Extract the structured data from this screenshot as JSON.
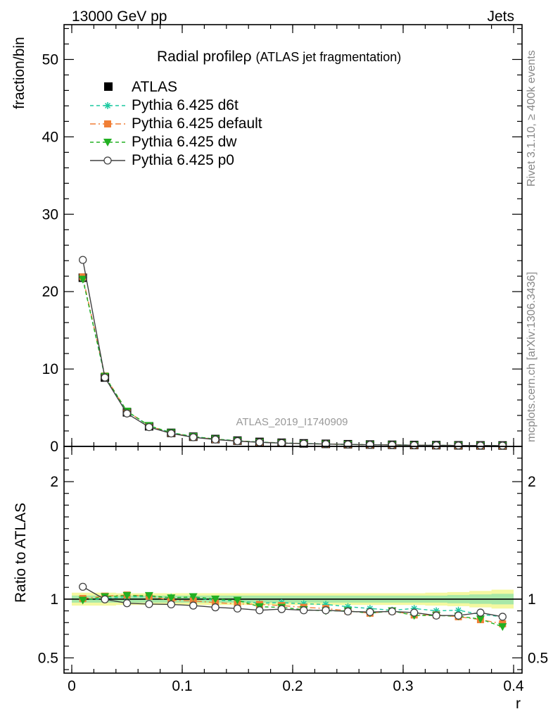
{
  "header": {
    "left": "13000 GeV pp",
    "right": "Jets"
  },
  "side_notes": {
    "rivet": "Rivet 3.1.10, ≥ 400k events",
    "mcplots": "mcplots.cern.ch [arXiv:1306.3436]"
  },
  "chart_data": {
    "type": "line",
    "title_main": "Radial profileρ",
    "title_sub": "(ATLAS jet fragmentation)",
    "analysis_label": "ATLAS_2019_I1740909",
    "xlabel": "r",
    "ylabel_main": "fraction/bin",
    "ylabel_ratio": "Ratio to ATLAS",
    "xlim": [
      0,
      0.4
    ],
    "ylim_main": [
      0,
      54.5
    ],
    "ylim_ratio": [
      0.37,
      2.3
    ],
    "x_ticks": [
      0,
      0.1,
      0.2,
      0.3,
      0.4
    ],
    "x_tick_labels": [
      "0",
      "0.1",
      "0.2",
      "0.3",
      "0.4"
    ],
    "y_ticks_main": [
      0,
      10,
      20,
      30,
      40,
      50
    ],
    "y_tick_labels_main": [
      "0",
      "10",
      "20",
      "30",
      "40",
      "50"
    ],
    "y_ticks_ratio": [
      0.5,
      1,
      2
    ],
    "y_tick_labels_ratio": [
      "0.5",
      "1",
      "2"
    ],
    "x": [
      0.01,
      0.03,
      0.05,
      0.07,
      0.09,
      0.11,
      0.13,
      0.15,
      0.17,
      0.19,
      0.21,
      0.23,
      0.25,
      0.27,
      0.29,
      0.31,
      0.33,
      0.35,
      0.37,
      0.39
    ],
    "data": {
      "name": "ATLAS",
      "color": "#000000",
      "values": [
        21.8,
        8.9,
        4.4,
        2.6,
        1.75,
        1.25,
        0.95,
        0.74,
        0.58,
        0.47,
        0.39,
        0.33,
        0.28,
        0.24,
        0.21,
        0.18,
        0.16,
        0.14,
        0.13,
        0.12
      ]
    },
    "series": [
      {
        "name": "Pythia 6.425 d6t",
        "color": "#1bc9a0",
        "dash": "5,4",
        "marker": "star",
        "values": [
          21.7,
          8.95,
          4.5,
          2.66,
          1.78,
          1.27,
          0.94,
          0.73,
          0.56,
          0.455,
          0.375,
          0.315,
          0.262,
          0.221,
          0.19,
          0.166,
          0.14,
          0.126,
          0.11,
          0.102
        ],
        "ratio": [
          0.995,
          1.005,
          1.02,
          1.02,
          1.015,
          1.015,
          0.99,
          0.985,
          0.965,
          0.97,
          0.96,
          0.955,
          0.935,
          0.92,
          0.905,
          0.92,
          0.9,
          0.905,
          0.87,
          0.85
        ]
      },
      {
        "name": "Pythia 6.425 default",
        "color": "#f07f36",
        "dash": "8,4,2,4",
        "marker": "square",
        "values": [
          21.9,
          9.1,
          4.55,
          2.66,
          1.73,
          1.23,
          0.92,
          0.71,
          0.553,
          0.443,
          0.363,
          0.304,
          0.252,
          0.211,
          0.189,
          0.156,
          0.138,
          0.119,
          0.107,
          0.095
        ],
        "ratio": [
          1.005,
          1.025,
          1.035,
          1.025,
          0.99,
          0.985,
          0.97,
          0.96,
          0.955,
          0.945,
          0.93,
          0.92,
          0.9,
          0.88,
          0.9,
          0.865,
          0.865,
          0.85,
          0.825,
          0.79
        ]
      },
      {
        "name": "Pythia 6.425 dw",
        "color": "#22b022",
        "dash": "5,4",
        "marker": "triangle-down",
        "values": [
          21.6,
          9.05,
          4.55,
          2.68,
          1.77,
          1.27,
          0.95,
          0.73,
          0.543,
          0.437,
          0.355,
          0.297,
          0.252,
          0.211,
          0.189,
          0.155,
          0.138,
          0.12,
          0.108,
          0.092
        ],
        "ratio": [
          0.99,
          1.02,
          1.03,
          1.03,
          1.01,
          1.02,
          1.0,
          0.99,
          0.935,
          0.93,
          0.91,
          0.9,
          0.9,
          0.88,
          0.9,
          0.86,
          0.86,
          0.855,
          0.83,
          0.765
        ]
      },
      {
        "name": "Pythia 6.425 p0",
        "color": "#404040",
        "dash": "",
        "marker": "circle-open",
        "values": [
          24.1,
          8.9,
          4.25,
          2.49,
          1.67,
          1.18,
          0.885,
          0.68,
          0.527,
          0.432,
          0.355,
          0.3,
          0.251,
          0.213,
          0.189,
          0.159,
          0.137,
          0.12,
          0.115,
          0.102
        ],
        "ratio": [
          1.105,
          0.998,
          0.965,
          0.958,
          0.955,
          0.945,
          0.93,
          0.92,
          0.905,
          0.915,
          0.905,
          0.905,
          0.895,
          0.89,
          0.895,
          0.885,
          0.86,
          0.86,
          0.885,
          0.85
        ]
      }
    ],
    "uncertainty_band": {
      "color_inner": "#a8e8a8",
      "color_outer": "#f4f8a0",
      "inner": [
        0.03,
        0.03,
        0.03,
        0.03,
        0.03,
        0.03,
        0.03,
        0.03,
        0.03,
        0.03,
        0.03,
        0.03,
        0.03,
        0.03,
        0.03,
        0.03,
        0.03,
        0.035,
        0.04,
        0.045
      ],
      "outer": [
        0.055,
        0.055,
        0.05,
        0.05,
        0.05,
        0.05,
        0.05,
        0.05,
        0.05,
        0.05,
        0.05,
        0.05,
        0.05,
        0.05,
        0.05,
        0.05,
        0.055,
        0.06,
        0.07,
        0.08
      ]
    }
  }
}
